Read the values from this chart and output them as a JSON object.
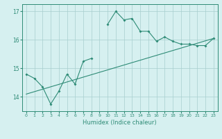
{
  "title": "",
  "xlabel": "Humidex (Indice chaleur)",
  "line_color": "#2e8b76",
  "background_color": "#d6f0f0",
  "grid_color": "#a8cece",
  "x_data": [
    0,
    1,
    2,
    3,
    4,
    5,
    6,
    7,
    8,
    9,
    10,
    11,
    12,
    13,
    14,
    15,
    16,
    17,
    18,
    19,
    20,
    21,
    22,
    23
  ],
  "y_zigzag": [
    14.8,
    14.65,
    14.35,
    13.75,
    14.2,
    14.8,
    14.45,
    15.25,
    15.35,
    null,
    16.55,
    17.0,
    16.7,
    16.75,
    16.3,
    16.3,
    15.95,
    16.1,
    15.95,
    15.85,
    15.85,
    15.8,
    15.8,
    16.05
  ],
  "trend_x": [
    0,
    23
  ],
  "trend_y": [
    14.1,
    16.05
  ],
  "ylim": [
    13.5,
    17.25
  ],
  "xlim": [
    -0.5,
    23.5
  ],
  "yticks": [
    14,
    15,
    16,
    17
  ],
  "xticks": [
    0,
    1,
    2,
    3,
    4,
    5,
    6,
    7,
    8,
    9,
    10,
    11,
    12,
    13,
    14,
    15,
    16,
    17,
    18,
    19,
    20,
    21,
    22,
    23
  ]
}
